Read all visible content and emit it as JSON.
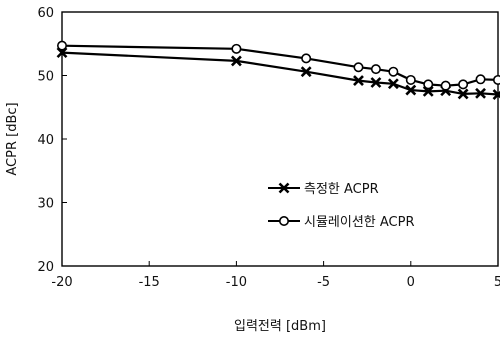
{
  "chart_data": {
    "type": "line",
    "xlabel": "입력전력 [dBm]",
    "ylabel": "ACPR [dBc]",
    "xlim": [
      -20,
      5
    ],
    "ylim": [
      20,
      60
    ],
    "xticks": [
      -20,
      -15,
      -10,
      -5,
      0,
      5
    ],
    "yticks": [
      20,
      30,
      40,
      50,
      60
    ],
    "grid": false,
    "legend_position": "lower-right",
    "series": [
      {
        "name": "측정한 ACPR",
        "marker": "x",
        "color": "#000000",
        "x": [
          -20,
          -10,
          -6,
          -3,
          -2,
          -1,
          0,
          1,
          2,
          3,
          4,
          5
        ],
        "y": [
          53.6,
          52.3,
          50.6,
          49.2,
          48.9,
          48.7,
          47.7,
          47.5,
          47.6,
          47.1,
          47.2,
          47.0
        ]
      },
      {
        "name": "시뮬레이션한 ACPR",
        "marker": "o",
        "color": "#000000",
        "x": [
          -20,
          -10,
          -6,
          -3,
          -2,
          -1,
          0,
          1,
          2,
          3,
          4,
          5
        ],
        "y": [
          54.7,
          54.2,
          52.7,
          51.3,
          51.0,
          50.6,
          49.3,
          48.6,
          48.4,
          48.6,
          49.4,
          49.3
        ]
      }
    ]
  }
}
